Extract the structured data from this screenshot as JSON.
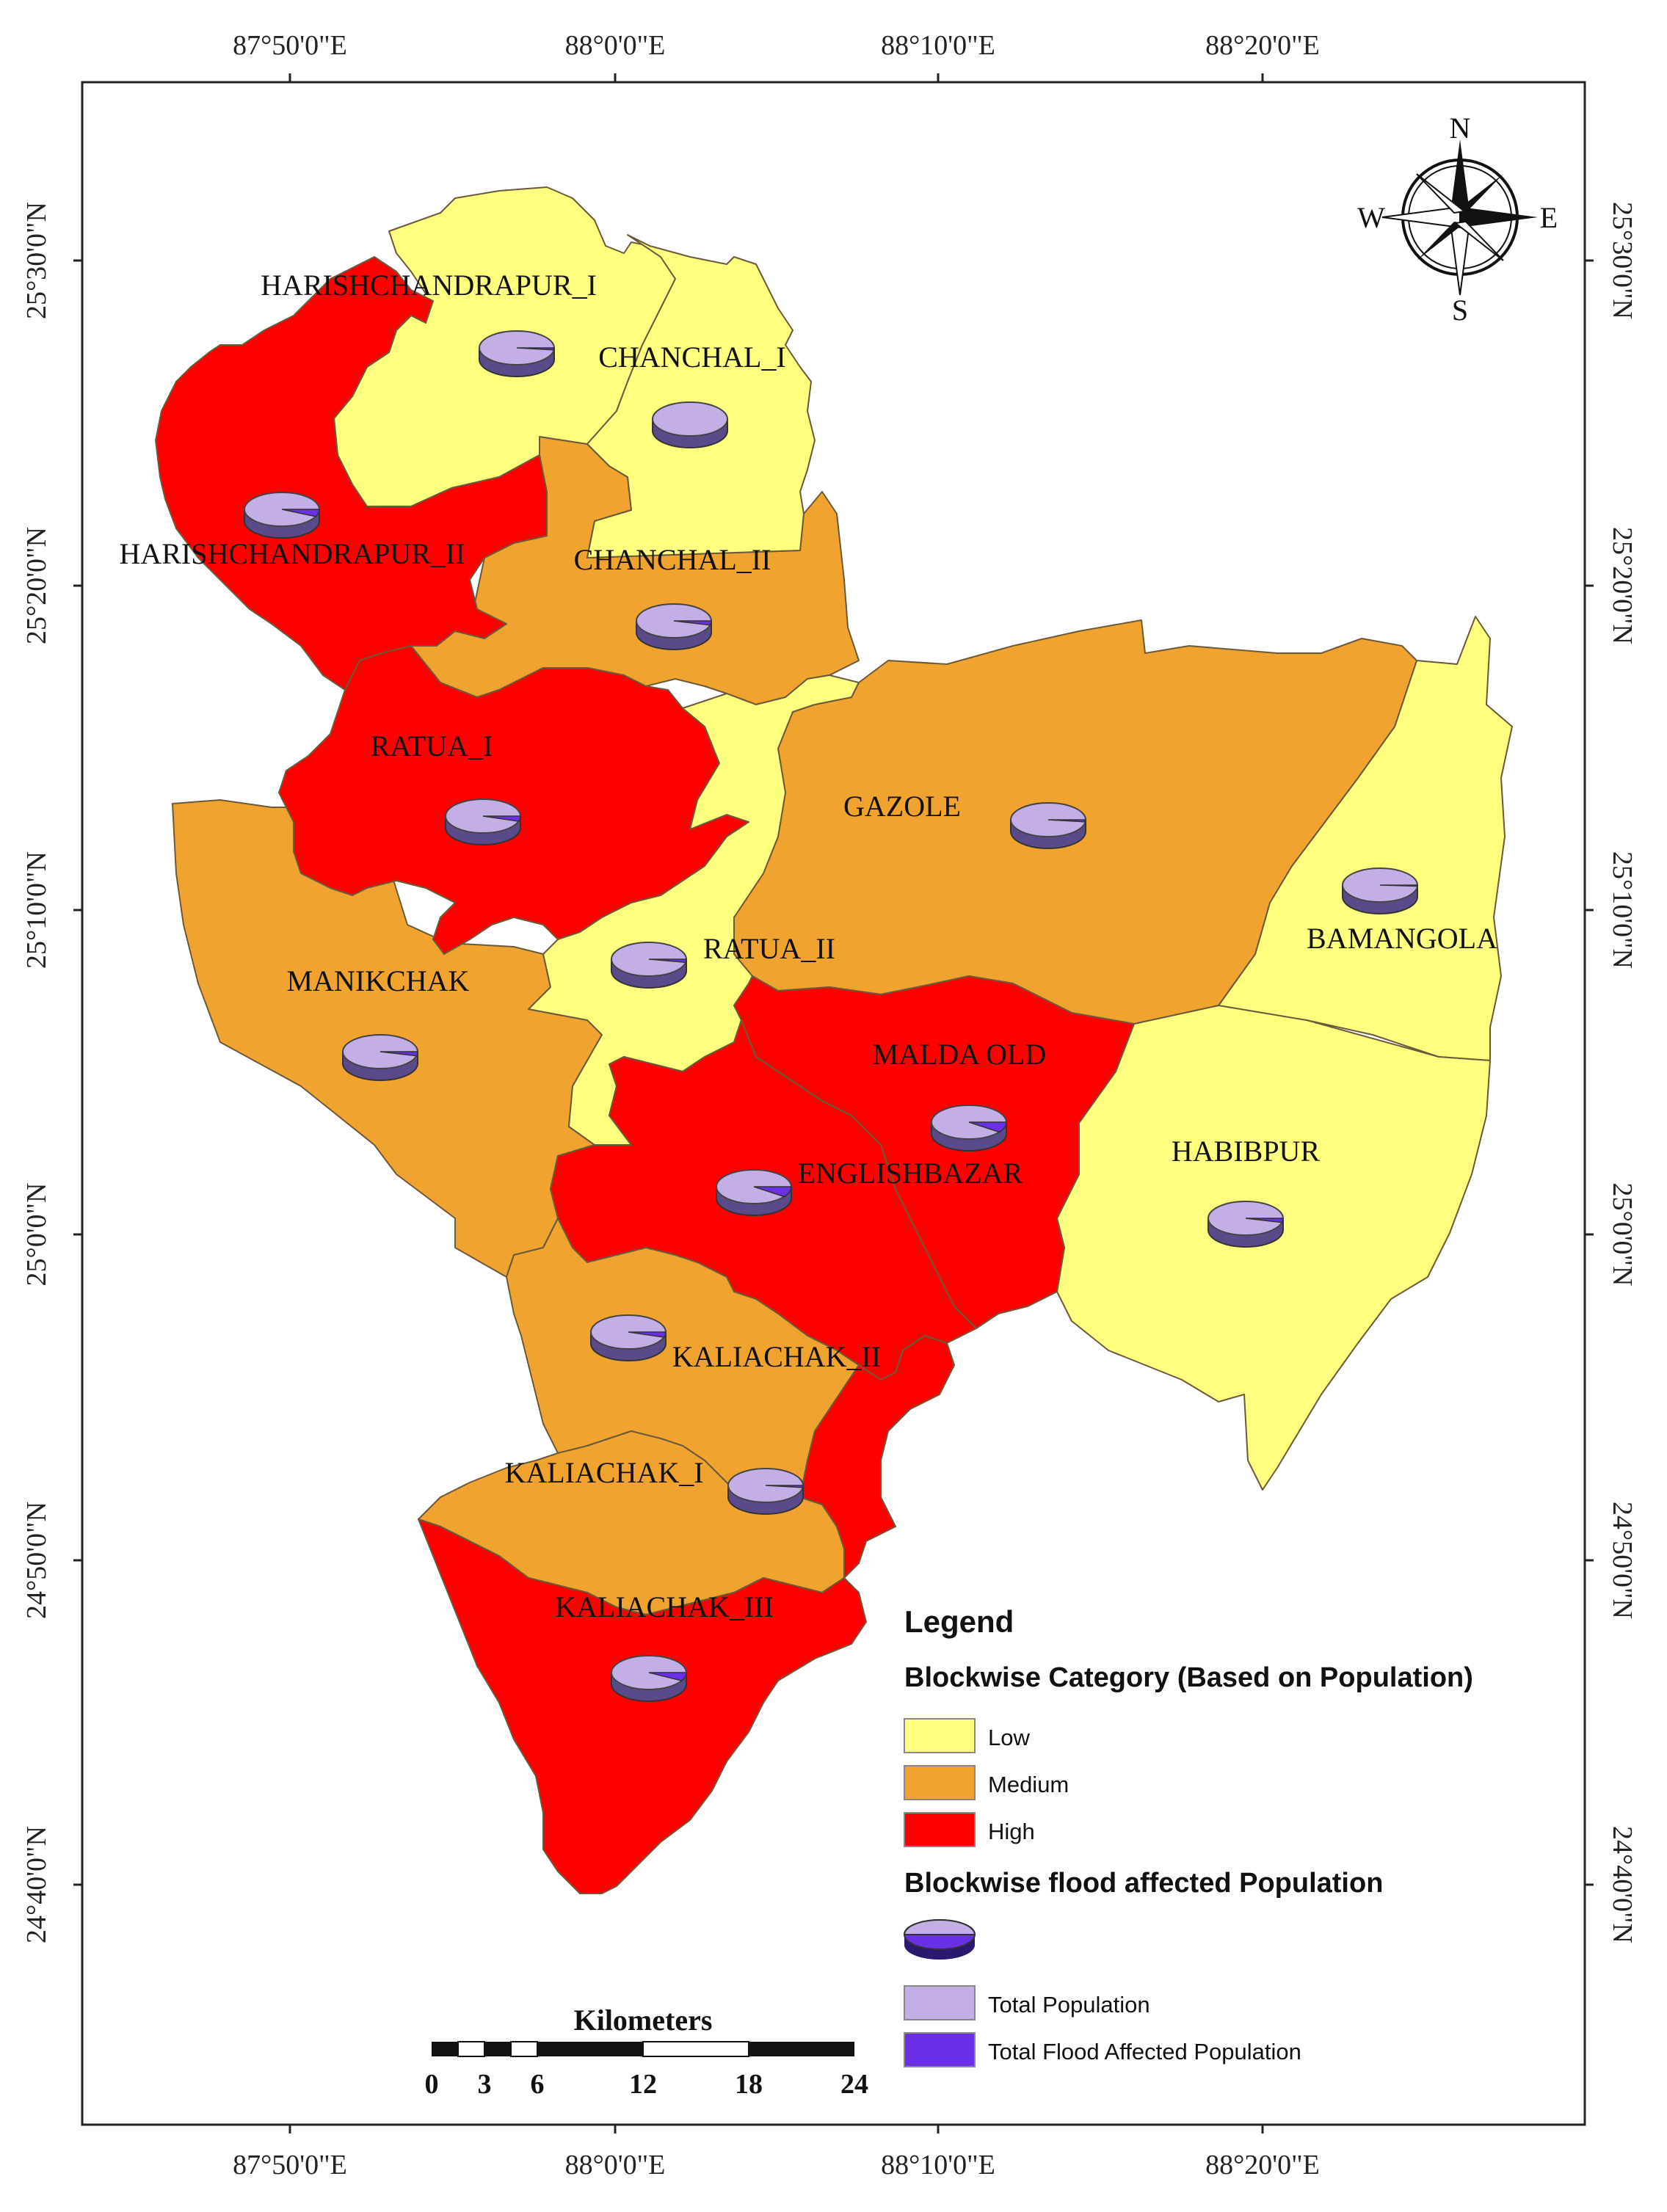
{
  "colors": {
    "low": "#ffff80",
    "medium": "#f0a32e",
    "high": "#ff0000",
    "total_population": "#c3aee6",
    "flood_affected": "#6a2fe6"
  },
  "coordinates": {
    "longitudes": [
      "87°50'0\"E",
      "88°0'0\"E",
      "88°10'0\"E",
      "88°20'0\"E"
    ],
    "latitudes": [
      "25°30'0\"N",
      "25°20'0\"N",
      "25°10'0\"N",
      "25°0'0\"N",
      "24°50'0\"N",
      "24°40'0\"N"
    ]
  },
  "compass": {
    "n": "N",
    "s": "S",
    "e": "E",
    "w": "W"
  },
  "blocks": [
    {
      "name": "HARISHCHANDRAPUR_I",
      "category": "Low",
      "flood_share": 0.02
    },
    {
      "name": "CHANCHAL_I",
      "category": "Low",
      "flood_share": 0.0
    },
    {
      "name": "HARISHCHANDRAPUR_II",
      "category": "High",
      "flood_share": 0.07
    },
    {
      "name": "CHANCHAL_II",
      "category": "Medium",
      "flood_share": 0.04
    },
    {
      "name": "RATUA_I",
      "category": "High",
      "flood_share": 0.05
    },
    {
      "name": "GAZOLE",
      "category": "Medium",
      "flood_share": 0.02
    },
    {
      "name": "BAMANGOLA",
      "category": "Low",
      "flood_share": 0.01
    },
    {
      "name": "RATUA_II",
      "category": "Low",
      "flood_share": 0.03
    },
    {
      "name": "MANIKCHAK",
      "category": "Medium",
      "flood_share": 0.04
    },
    {
      "name": "MALDA OLD",
      "category": "High",
      "flood_share": 0.1
    },
    {
      "name": "ENGLISHBAZAR",
      "category": "High",
      "flood_share": 0.1
    },
    {
      "name": "HABIBPUR",
      "category": "Low",
      "flood_share": 0.04
    },
    {
      "name": "KALIACHAK_II",
      "category": "Medium",
      "flood_share": 0.05
    },
    {
      "name": "KALIACHAK_I",
      "category": "Medium",
      "flood_share": 0.02
    },
    {
      "name": "KALIACHAK_III",
      "category": "High",
      "flood_share": 0.08
    }
  ],
  "legend": {
    "title": "Legend",
    "category_heading": "Blockwise Category (Based on Population)",
    "low": "Low",
    "medium": "Medium",
    "high": "High",
    "flood_heading": "Blockwise flood affected Population",
    "total_population": "Total Population",
    "flood_affected": "Total Flood Affected Population"
  },
  "scale_bar": {
    "title": "Kilometers",
    "ticks": [
      "0",
      "3",
      "6",
      "12",
      "18",
      "24"
    ]
  }
}
